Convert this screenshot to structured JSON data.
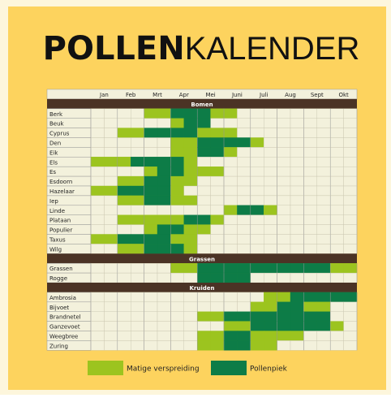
{
  "title_bold": "POLLEN",
  "title_light": "KALENDER",
  "months": [
    "Jan",
    "Feb",
    "Mrt",
    "Apr",
    "Mei",
    "Juni",
    "Juli",
    "Aug",
    "Sept",
    "Okt"
  ],
  "legend": [
    {
      "label": "Matige verspreiding",
      "color": "#9cc41f"
    },
    {
      "label": "Pollenpiek",
      "color": "#0d7c47"
    }
  ],
  "sections": [
    {
      "name": "Bomen",
      "rows": [
        {
          "name": "Berk",
          "cells": [
            0,
            0,
            0,
            0,
            1,
            1,
            2,
            2,
            2,
            1,
            1,
            0,
            0,
            0,
            0,
            0,
            0,
            0,
            0,
            0
          ]
        },
        {
          "name": "Beuk",
          "cells": [
            0,
            0,
            0,
            0,
            0,
            0,
            1,
            2,
            2,
            0,
            0,
            0,
            0,
            0,
            0,
            0,
            0,
            0,
            0,
            0
          ]
        },
        {
          "name": "Cyprus",
          "cells": [
            0,
            0,
            1,
            1,
            2,
            2,
            2,
            2,
            1,
            1,
            1,
            0,
            0,
            0,
            0,
            0,
            0,
            0,
            0,
            0
          ]
        },
        {
          "name": "Den",
          "cells": [
            0,
            0,
            0,
            0,
            0,
            0,
            1,
            1,
            2,
            2,
            2,
            2,
            1,
            0,
            0,
            0,
            0,
            0,
            0,
            0
          ]
        },
        {
          "name": "Eik",
          "cells": [
            0,
            0,
            0,
            0,
            0,
            0,
            1,
            1,
            2,
            2,
            1,
            0,
            0,
            0,
            0,
            0,
            0,
            0,
            0,
            0
          ]
        },
        {
          "name": "Els",
          "cells": [
            1,
            1,
            1,
            2,
            2,
            2,
            2,
            1,
            0,
            0,
            0,
            0,
            0,
            0,
            0,
            0,
            0,
            0,
            0,
            0
          ]
        },
        {
          "name": "Es",
          "cells": [
            0,
            0,
            0,
            0,
            1,
            2,
            2,
            1,
            1,
            1,
            0,
            0,
            0,
            0,
            0,
            0,
            0,
            0,
            0,
            0
          ]
        },
        {
          "name": "Esdoorn",
          "cells": [
            0,
            0,
            1,
            1,
            2,
            2,
            1,
            1,
            0,
            0,
            0,
            0,
            0,
            0,
            0,
            0,
            0,
            0,
            0,
            0
          ]
        },
        {
          "name": "Hazelaar",
          "cells": [
            1,
            1,
            2,
            2,
            2,
            2,
            1,
            0,
            0,
            0,
            0,
            0,
            0,
            0,
            0,
            0,
            0,
            0,
            0,
            0
          ]
        },
        {
          "name": "Iep",
          "cells": [
            0,
            0,
            1,
            1,
            2,
            2,
            1,
            1,
            0,
            0,
            0,
            0,
            0,
            0,
            0,
            0,
            0,
            0,
            0,
            0
          ]
        },
        {
          "name": "Linde",
          "cells": [
            0,
            0,
            0,
            0,
            0,
            0,
            0,
            0,
            0,
            0,
            1,
            2,
            2,
            1,
            0,
            0,
            0,
            0,
            0,
            0
          ]
        },
        {
          "name": "Plataan",
          "cells": [
            0,
            0,
            1,
            1,
            1,
            1,
            1,
            2,
            2,
            1,
            0,
            0,
            0,
            0,
            0,
            0,
            0,
            0,
            0,
            0
          ]
        },
        {
          "name": "Populier",
          "cells": [
            0,
            0,
            0,
            0,
            1,
            2,
            2,
            1,
            1,
            0,
            0,
            0,
            0,
            0,
            0,
            0,
            0,
            0,
            0,
            0
          ]
        },
        {
          "name": "Taxus",
          "cells": [
            1,
            1,
            2,
            2,
            2,
            2,
            1,
            1,
            0,
            0,
            0,
            0,
            0,
            0,
            0,
            0,
            0,
            0,
            0,
            0
          ]
        },
        {
          "name": "Wilg",
          "cells": [
            0,
            0,
            1,
            1,
            2,
            2,
            2,
            1,
            0,
            0,
            0,
            0,
            0,
            0,
            0,
            0,
            0,
            0,
            0,
            0
          ]
        }
      ]
    },
    {
      "name": "Grassen",
      "rows": [
        {
          "name": "Grassen",
          "cells": [
            0,
            0,
            0,
            0,
            0,
            0,
            1,
            1,
            2,
            2,
            2,
            2,
            2,
            2,
            2,
            2,
            2,
            2,
            1,
            1
          ]
        },
        {
          "name": "Rogge",
          "cells": [
            0,
            0,
            0,
            0,
            0,
            0,
            0,
            0,
            2,
            2,
            2,
            2,
            0,
            0,
            0,
            0,
            0,
            0,
            0,
            0
          ]
        }
      ]
    },
    {
      "name": "Kruiden",
      "rows": [
        {
          "name": "Ambrosia",
          "cells": [
            0,
            0,
            0,
            0,
            0,
            0,
            0,
            0,
            0,
            0,
            0,
            0,
            0,
            1,
            1,
            2,
            2,
            2,
            2,
            2
          ]
        },
        {
          "name": "Bijvoet",
          "cells": [
            0,
            0,
            0,
            0,
            0,
            0,
            0,
            0,
            0,
            0,
            0,
            0,
            1,
            1,
            2,
            2,
            1,
            1,
            0,
            0
          ]
        },
        {
          "name": "Brandnetel",
          "cells": [
            0,
            0,
            0,
            0,
            0,
            0,
            0,
            0,
            1,
            1,
            2,
            2,
            2,
            2,
            2,
            2,
            2,
            2,
            0,
            0
          ]
        },
        {
          "name": "Ganzevoet",
          "cells": [
            0,
            0,
            0,
            0,
            0,
            0,
            0,
            0,
            0,
            0,
            1,
            1,
            2,
            2,
            2,
            2,
            2,
            2,
            1,
            0
          ]
        },
        {
          "name": "Weegbree",
          "cells": [
            0,
            0,
            0,
            0,
            0,
            0,
            0,
            0,
            1,
            1,
            2,
            2,
            1,
            1,
            1,
            1,
            0,
            0,
            0,
            0
          ]
        },
        {
          "name": "Zuring",
          "cells": [
            0,
            0,
            0,
            0,
            0,
            0,
            0,
            0,
            1,
            1,
            2,
            2,
            1,
            1,
            0,
            0,
            0,
            0,
            0,
            0
          ]
        }
      ]
    }
  ]
}
